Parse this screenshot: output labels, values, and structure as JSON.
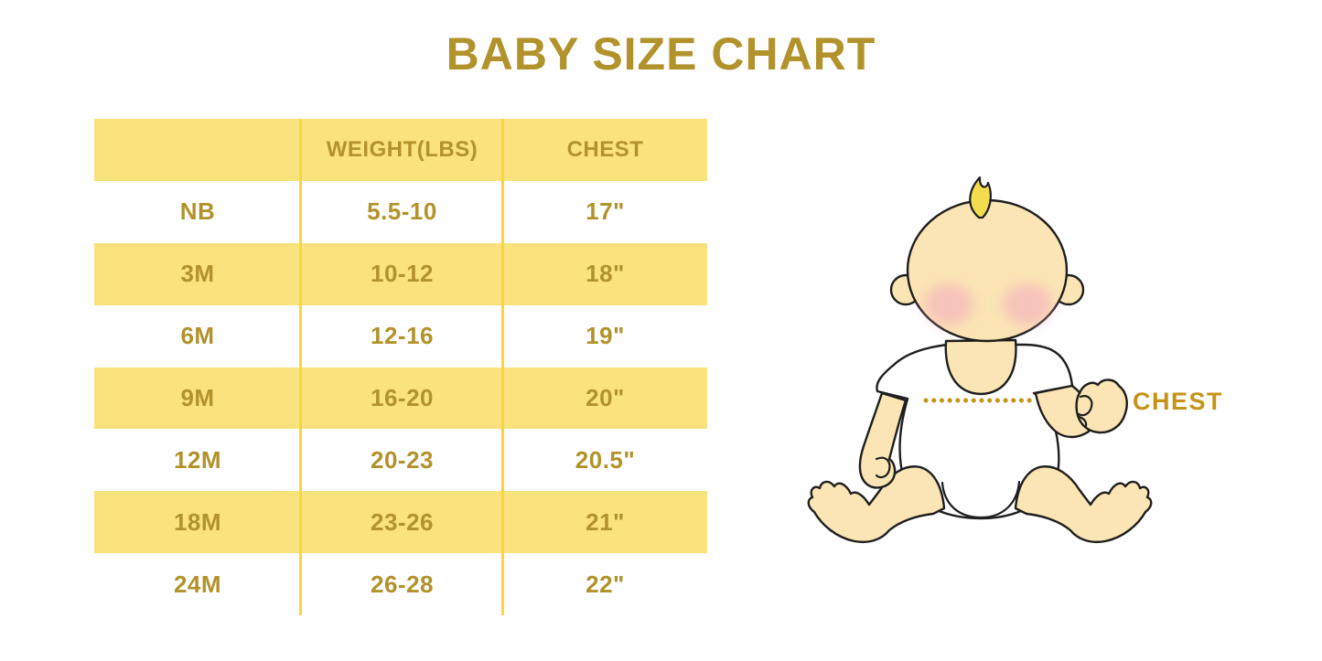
{
  "title": "BABY SIZE CHART",
  "table": {
    "headers": [
      "",
      "WEIGHT(LBS)",
      "CHEST"
    ],
    "rows": [
      {
        "size": "NB",
        "weight": "5.5-10",
        "chest": "17\""
      },
      {
        "size": "3M",
        "weight": "10-12",
        "chest": "18\""
      },
      {
        "size": "6M",
        "weight": "12-16",
        "chest": "19\""
      },
      {
        "size": "9M",
        "weight": "16-20",
        "chest": "20\""
      },
      {
        "size": "12M",
        "weight": "20-23",
        "chest": "20.5\""
      },
      {
        "size": "18M",
        "weight": "23-26",
        "chest": "21\""
      },
      {
        "size": "24M",
        "weight": "26-28",
        "chest": "22\""
      }
    ]
  },
  "illustration": {
    "chest_label": "CHEST",
    "description": "cartoon baby sitting, dotted measurement line across chest"
  },
  "colors": {
    "gold_text": "#B2922B",
    "row_yellow": "#FAE37D",
    "divider_yellow": "#FCD53B",
    "chest_gold": "#C49417",
    "skin": "#FBE5B4",
    "blush": "#F2A7C0",
    "hair": "#F3DC4E",
    "outline": "#1E1E1E",
    "onesie": "#FFFFFF",
    "background": "#FFFFFF"
  }
}
